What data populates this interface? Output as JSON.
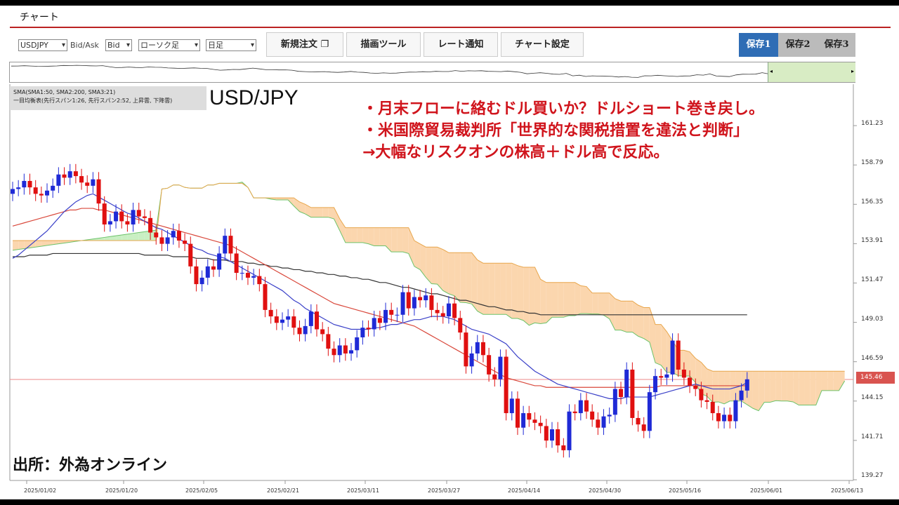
{
  "window": {
    "title": "チャート"
  },
  "toolbar": {
    "symbol_select": "USDJPY",
    "bidask_label": "Bid/Ask",
    "bidask_select": "Bid",
    "chart_type_select": "ローソク足",
    "timeframe_select": "日足",
    "buttons": [
      "新規注文",
      "描画ツール",
      "レート通知",
      "チャート設定"
    ],
    "saves": [
      "保存1",
      "保存2",
      "保存3"
    ],
    "active_save": 0
  },
  "indicators": {
    "sma_line": "SMA(SMA1:50, SMA2:200, SMA3:21)",
    "ichimoku_line": "一目均衡表(先行スパン1:26, 先行スパン2:52, 上昇雲, 下降雲)"
  },
  "symbol_label": "USD/JPY",
  "notes": [
    "・月末フローに絡むドル買いか？ドルショート巻き戻し。",
    "・米国際貿易裁判所「世界的な関税措置を違法と判断」",
    "→大幅なリスクオンの株高＋ドル高で反応。"
  ],
  "source": "出所：外為オンライン",
  "colors": {
    "up": "#1f2ad6",
    "down": "#e01010",
    "accent": "#b22222",
    "save_active": "#2f6db5"
  },
  "current_price": "145.46",
  "chart_data": {
    "type": "candlestick",
    "ylim": [
      139.27,
      163.67
    ],
    "y_ticks": [
      "161.23",
      "158.79",
      "156.35",
      "153.91",
      "151.47",
      "149.03",
      "146.59",
      "144.15",
      "141.71",
      "139.27"
    ],
    "x_ticks": [
      "2025/01/02",
      "2025/01/20",
      "2025/02/05",
      "2025/02/21",
      "2025/03/11",
      "2025/03/27",
      "2025/04/14",
      "2025/04/30",
      "2025/05/16",
      "2025/06/01",
      "2025/06/13"
    ],
    "closes": [
      157.3,
      157.4,
      157.8,
      157.4,
      157.0,
      156.9,
      157.2,
      157.5,
      158.2,
      158.0,
      158.4,
      158.1,
      157.7,
      157.5,
      157.9,
      156.4,
      155.1,
      155.3,
      155.9,
      155.3,
      155.1,
      156.0,
      155.6,
      155.5,
      154.6,
      154.3,
      153.9,
      154.3,
      154.7,
      154.1,
      153.9,
      152.5,
      151.4,
      151.8,
      152.5,
      152.3,
      153.3,
      154.4,
      153.3,
      152.1,
      152.1,
      151.8,
      151.9,
      151.4,
      149.8,
      149.4,
      149.0,
      149.2,
      149.4,
      148.7,
      148.3,
      148.8,
      149.7,
      148.6,
      148.3,
      147.4,
      147.0,
      147.6,
      147.1,
      147.3,
      148.1,
      148.7,
      148.6,
      149.3,
      149.0,
      149.8,
      149.5,
      149.5,
      150.9,
      149.9,
      150.6,
      150.4,
      150.7,
      149.8,
      149.6,
      149.4,
      150.2,
      149.3,
      148.4,
      146.3,
      147.1,
      147.8,
      147.0,
      145.8,
      145.5,
      146.9,
      143.4,
      144.3,
      142.5,
      143.4,
      143.0,
      142.8,
      142.6,
      141.7,
      142.4,
      141.4,
      141.1,
      143.5,
      143.4,
      144.2,
      143.5,
      143.0,
      142.5,
      143.2,
      143.3,
      144.9,
      144.4,
      146.1,
      143.1,
      142.7,
      142.3,
      144.7,
      145.7,
      145.6,
      145.8,
      147.9,
      146.1,
      145.6,
      145.1,
      144.9,
      144.2,
      144.1,
      143.4,
      142.9,
      143.3,
      142.9,
      144.2,
      144.8,
      145.5
    ],
    "sma21": [
      153.0,
      153.2,
      153.5,
      153.8,
      154.1,
      154.4,
      154.7,
      155.1,
      155.5,
      155.9,
      156.2,
      156.5,
      156.7,
      156.9,
      157.0,
      156.8,
      156.6,
      156.4,
      156.2,
      156.0,
      155.8,
      155.7,
      155.5,
      155.3,
      155.1,
      154.9,
      154.8,
      154.6,
      154.4,
      154.2,
      154.0,
      153.8,
      153.6,
      153.5,
      153.3,
      153.2,
      153.1,
      153.0,
      152.8,
      152.6,
      152.4,
      152.2,
      152.0,
      151.8,
      151.6,
      151.4,
      151.2,
      151.0,
      150.7,
      150.4,
      150.2,
      149.9,
      149.7,
      149.5,
      149.3,
      149.1,
      148.9,
      148.8,
      148.7,
      148.6,
      148.6,
      148.6,
      148.6,
      148.7,
      148.7,
      148.8,
      148.9,
      148.9,
      149.0,
      149.1,
      149.2,
      149.2,
      149.3,
      149.4,
      149.4,
      149.4,
      149.3,
      149.2,
      149.0,
      148.8,
      148.6,
      148.5,
      148.4,
      148.3,
      148.1,
      147.9,
      147.7,
      147.3,
      146.9,
      146.6,
      146.3,
      146.0,
      145.8,
      145.6,
      145.4,
      145.2,
      145.1,
      145.0,
      144.9,
      144.8,
      144.7,
      144.6,
      144.5,
      144.4,
      144.3,
      144.3,
      144.3,
      144.4,
      144.4,
      144.4,
      144.4,
      144.4,
      144.5,
      144.6,
      144.7,
      144.8,
      144.9,
      145.0,
      145.1,
      145.2,
      145.1,
      145.0,
      144.9,
      144.9,
      144.9,
      144.9,
      145.0,
      145.1,
      145.3
    ],
    "sma50": [
      155.0,
      155.1,
      155.2,
      155.3,
      155.4,
      155.5,
      155.6,
      155.7,
      155.8,
      155.9,
      156.0,
      156.0,
      156.1,
      156.1,
      156.1,
      156.0,
      156.0,
      155.9,
      155.8,
      155.7,
      155.6,
      155.5,
      155.4,
      155.3,
      155.2,
      155.1,
      155.0,
      154.9,
      154.8,
      154.7,
      154.6,
      154.5,
      154.4,
      154.3,
      154.2,
      154.1,
      154.0,
      153.9,
      153.8,
      153.6,
      153.4,
      153.2,
      153.0,
      152.8,
      152.6,
      152.4,
      152.2,
      152.0,
      151.8,
      151.6,
      151.4,
      151.2,
      151.0,
      150.8,
      150.6,
      150.4,
      150.2,
      150.1,
      150.0,
      149.9,
      149.8,
      149.7,
      149.6,
      149.5,
      149.4,
      149.3,
      149.2,
      149.1,
      149.0,
      148.9,
      148.8,
      148.6,
      148.4,
      148.2,
      148.0,
      147.8,
      147.6,
      147.4,
      147.2,
      147.0,
      146.8,
      146.6,
      146.4,
      146.2,
      146.0,
      145.8,
      145.6,
      145.5,
      145.4,
      145.3,
      145.2,
      145.1,
      145.1,
      145.0,
      145.0,
      145.0,
      145.0,
      145.0,
      145.0,
      145.0,
      145.0,
      145.0,
      145.0,
      145.0,
      145.0,
      145.0,
      145.0,
      145.0,
      145.0,
      145.0,
      145.0,
      145.0,
      145.0,
      145.1,
      145.1,
      145.1,
      145.1,
      145.1,
      145.1,
      145.1,
      145.1,
      145.1,
      145.1,
      145.1,
      145.1,
      145.1,
      145.1,
      145.1,
      145.1
    ],
    "sma200": [
      153.1,
      153.1,
      153.1,
      153.2,
      153.2,
      153.2,
      153.2,
      153.3,
      153.3,
      153.3,
      153.3,
      153.3,
      153.3,
      153.3,
      153.3,
      153.3,
      153.3,
      153.3,
      153.3,
      153.3,
      153.3,
      153.3,
      153.3,
      153.2,
      153.2,
      153.2,
      153.2,
      153.2,
      153.1,
      153.1,
      153.1,
      153.1,
      153.0,
      153.0,
      153.0,
      152.9,
      152.9,
      152.9,
      152.8,
      152.8,
      152.8,
      152.7,
      152.7,
      152.6,
      152.6,
      152.5,
      152.5,
      152.4,
      152.4,
      152.3,
      152.3,
      152.2,
      152.2,
      152.1,
      152.1,
      152.0,
      152.0,
      151.9,
      151.9,
      151.8,
      151.8,
      151.7,
      151.7,
      151.6,
      151.5,
      151.5,
      151.4,
      151.3,
      151.2,
      151.2,
      151.1,
      151.0,
      150.9,
      150.8,
      150.8,
      150.7,
      150.6,
      150.5,
      150.4,
      150.4,
      150.3,
      150.2,
      150.1,
      150.0,
      150.0,
      149.9,
      149.8,
      149.8,
      149.7,
      149.7,
      149.6,
      149.6,
      149.5,
      149.5,
      149.5,
      149.5,
      149.5,
      149.5,
      149.5,
      149.5,
      149.5,
      149.5,
      149.5,
      149.5,
      149.5,
      149.5,
      149.5,
      149.5,
      149.5,
      149.5,
      149.5,
      149.5,
      149.5,
      149.5,
      149.5,
      149.5,
      149.5,
      149.5,
      149.5,
      149.5,
      149.5,
      149.5,
      149.5,
      149.5,
      149.5,
      149.5,
      149.5,
      149.5,
      149.5
    ]
  }
}
